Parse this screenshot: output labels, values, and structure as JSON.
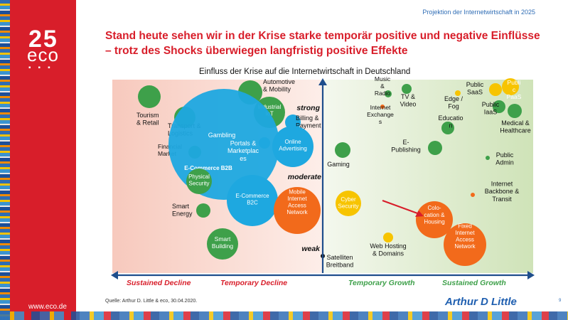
{
  "header": {
    "text": "Projektion der Internetwirtschaft in 2025"
  },
  "logo": {
    "number": "25",
    "text": "eco",
    "url": "www.eco.de"
  },
  "title": {
    "line1": "Stand heute sehen wir in der Krise starke temporär positive und negative Einflüsse",
    "line2": "– trotz des Shocks überwiegen langfristig positive Effekte"
  },
  "chart_title": "Einfluss der Krise auf die Internetwirtschaft in Deutschland",
  "axis": {
    "strong": "strong",
    "moderate": "moderate",
    "weak": "weak",
    "sustained_decline": "Sustained Decline",
    "temporary_decline": "Temporary Decline",
    "temporary_growth": "Temporary Growth",
    "sustained_growth": "Sustained Growth"
  },
  "bubbles": [
    {
      "lines": [
        "Tourism",
        "& Retail"
      ],
      "color": "#3ea04a"
    },
    {
      "lines": [
        "Transport &",
        "Logistics"
      ],
      "color": "#3ea04a"
    },
    {
      "lines": [
        "Financial",
        "Market"
      ],
      "color": "#3ea04a"
    },
    {
      "lines": [
        "Automotive",
        "& Mobility"
      ],
      "color": "#3ea04a"
    },
    {
      "lines": [
        "Industrial",
        "IoT"
      ],
      "color": "#3ea04a"
    },
    {
      "lines": [
        "Billing &",
        "Payment"
      ],
      "color": "#1ea8e0"
    },
    {
      "lines": [
        "Gambling"
      ],
      "color": "#1ea8e0"
    },
    {
      "lines": [
        "Portals &",
        "Marketplac",
        "es"
      ],
      "color": "#1ea8e0"
    },
    {
      "lines": [
        "Online",
        "Advertising"
      ],
      "color": "#1ea8e0"
    },
    {
      "lines": [
        "E-Commerce B2B"
      ],
      "color": "#1ea8e0"
    },
    {
      "lines": [
        "Physical",
        "Security"
      ],
      "color": "#3ea04a"
    },
    {
      "lines": [
        "E-Commerce",
        "B2C"
      ],
      "color": "#1ea8e0"
    },
    {
      "lines": [
        "Smart",
        "Energy"
      ],
      "color": "#3ea04a"
    },
    {
      "lines": [
        "Smart",
        "Building"
      ],
      "color": "#3ea04a"
    },
    {
      "lines": [
        "Mobile",
        "Internet",
        "Access",
        "Network"
      ],
      "color": "#f26a1b"
    },
    {
      "lines": [
        "Music",
        "&",
        "Radio"
      ],
      "color": "#3ea04a"
    },
    {
      "lines": [
        "TV &",
        "Video"
      ],
      "color": "#3ea04a"
    },
    {
      "lines": [
        "Internet",
        "Exchange",
        "s"
      ],
      "color": "#f26a1b"
    },
    {
      "lines": [
        "Gaming"
      ],
      "color": "#3ea04a"
    },
    {
      "lines": [
        "Cyber",
        "Security"
      ],
      "color": "#f7c400"
    },
    {
      "lines": [
        "Satelliten",
        "Breitband"
      ],
      "color": "#111"
    },
    {
      "lines": [
        "Web Hosting",
        "& Domains"
      ],
      "color": "#f7c400"
    },
    {
      "lines": [
        "E-",
        "Publishing"
      ],
      "color": "#3ea04a"
    },
    {
      "lines": [
        "Colo-",
        "cation &",
        "Housing"
      ],
      "color": "#f26a1b"
    },
    {
      "lines": [
        "Fixed",
        "Internet",
        "Access",
        "Network"
      ],
      "color": "#f26a1b"
    },
    {
      "lines": [
        "Public",
        "SaaS"
      ],
      "color": "#f7c400"
    },
    {
      "lines": [
        "Publi",
        "c",
        "PaaS"
      ],
      "color": "#f7c400"
    },
    {
      "lines": [
        "Edge /",
        "Fog"
      ],
      "color": "#f7c400"
    },
    {
      "lines": [
        "Public",
        "IaaS"
      ],
      "color": "#3ea04a"
    },
    {
      "lines": [
        "Educatio",
        "n"
      ],
      "color": "#3ea04a"
    },
    {
      "lines": [
        "Medical &",
        "Healthcare"
      ],
      "color": "#3ea04a"
    },
    {
      "lines": [
        "Public",
        "Admin"
      ],
      "color": "#3ea04a"
    },
    {
      "lines": [
        "Internet",
        "Backbone &",
        "Transit"
      ],
      "color": "#f26a1b"
    }
  ],
  "source": "Quelle: Arthur D. Little & eco, 30.04.2020.",
  "brand": "Arthur D Little",
  "page_number": "9"
}
